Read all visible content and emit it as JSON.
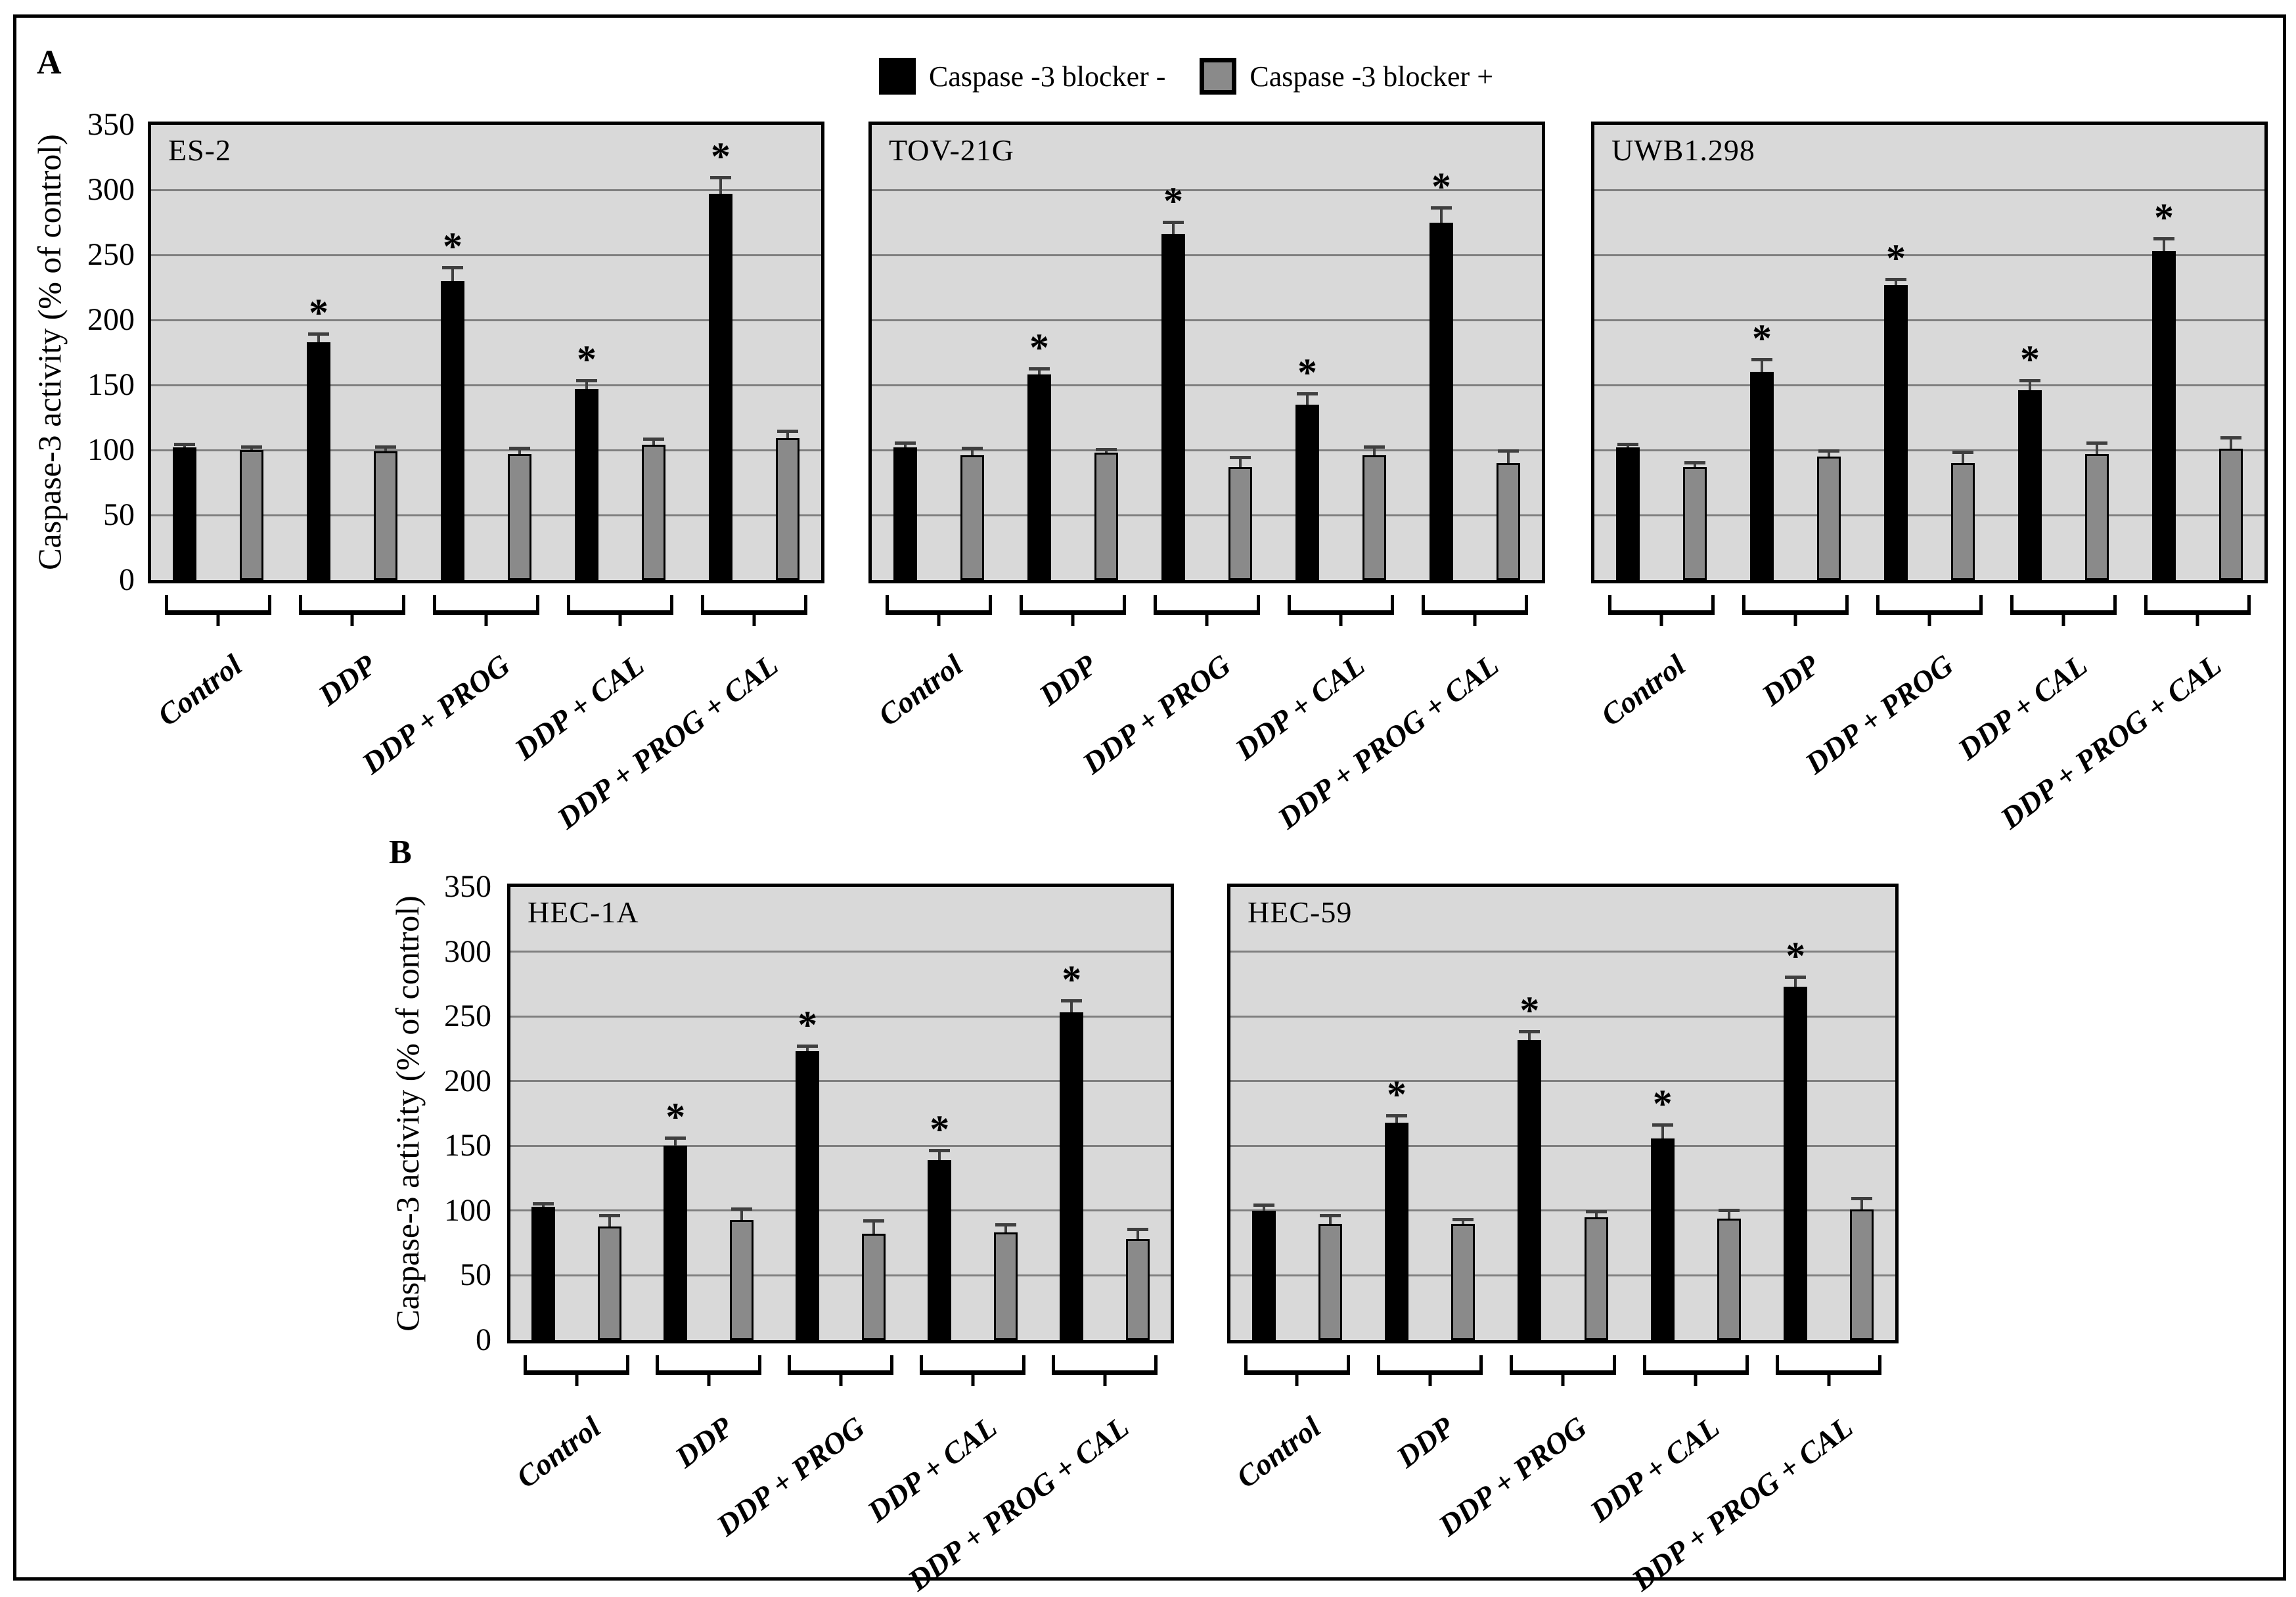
{
  "figure": {
    "panel_a_label": "A",
    "panel_b_label": "B",
    "legend": {
      "items": [
        {
          "label": "Caspase -3 blocker -",
          "color": "#000000"
        },
        {
          "label": "Caspase -3 blocker +",
          "color": "#8a8a8a"
        }
      ]
    },
    "y_axis": {
      "title": "Caspase-3 activity (% of control)",
      "ticks": [
        350,
        300,
        250,
        200,
        150,
        100,
        50,
        0
      ],
      "max": 350
    },
    "colors": {
      "black_bar": "#000000",
      "gray_bar": "#8a8a8a",
      "plot_bg": "#d9d9d9",
      "gridline": "#7f7f7f",
      "error_bar": "#3f3f3f",
      "border": "#000000"
    },
    "significance_marker": "*"
  },
  "chart_data": [
    {
      "type": "bar",
      "panel": "A",
      "title": "ES-2",
      "categories": [
        "Control",
        "DDP",
        "DDP + PROG",
        "DDP + CAL",
        "DDP + PROG + CAL"
      ],
      "ylim": [
        0,
        350
      ],
      "grid_step": 50,
      "series": [
        {
          "name": "Caspase -3 blocker -",
          "color": "#000000",
          "values": [
            102,
            183,
            230,
            147,
            297
          ],
          "errors": [
            2,
            6,
            10,
            6,
            12
          ],
          "significant": [
            false,
            true,
            true,
            true,
            true
          ]
        },
        {
          "name": "Caspase -3 blocker +",
          "color": "#8a8a8a",
          "values": [
            100,
            99,
            97,
            104,
            109
          ],
          "errors": [
            2,
            3,
            4,
            4,
            5
          ],
          "significant": [
            false,
            false,
            false,
            false,
            false
          ]
        }
      ]
    },
    {
      "type": "bar",
      "panel": "A",
      "title": "TOV-21G",
      "categories": [
        "Control",
        "DDP",
        "DDP + PROG",
        "DDP + CAL",
        "DDP + PROG + CAL"
      ],
      "ylim": [
        0,
        350
      ],
      "grid_step": 50,
      "series": [
        {
          "name": "Caspase -3 blocker -",
          "color": "#000000",
          "values": [
            102,
            158,
            266,
            135,
            275
          ],
          "errors": [
            3,
            4,
            9,
            8,
            11
          ],
          "significant": [
            false,
            true,
            true,
            true,
            true
          ]
        },
        {
          "name": "Caspase -3 blocker +",
          "color": "#8a8a8a",
          "values": [
            96,
            98,
            87,
            96,
            90
          ],
          "errors": [
            5,
            2,
            7,
            6,
            9
          ],
          "significant": [
            false,
            false,
            false,
            false,
            false
          ]
        }
      ]
    },
    {
      "type": "bar",
      "panel": "A",
      "title": "UWB1.298",
      "categories": [
        "Control",
        "DDP",
        "DDP + PROG",
        "DDP + CAL",
        "DDP + PROG + CAL"
      ],
      "ylim": [
        0,
        350
      ],
      "grid_step": 50,
      "series": [
        {
          "name": "Caspase -3 blocker -",
          "color": "#000000",
          "values": [
            102,
            160,
            227,
            146,
            253
          ],
          "errors": [
            2,
            9,
            4,
            7,
            9
          ],
          "significant": [
            false,
            true,
            true,
            true,
            true
          ]
        },
        {
          "name": "Caspase -3 blocker +",
          "color": "#8a8a8a",
          "values": [
            87,
            95,
            90,
            97,
            101
          ],
          "errors": [
            3,
            4,
            8,
            8,
            8
          ],
          "significant": [
            false,
            false,
            false,
            false,
            false
          ]
        }
      ]
    },
    {
      "type": "bar",
      "panel": "B",
      "title": "HEC-1A",
      "categories": [
        "Control",
        "DDP",
        "DDP + PROG",
        "DDP + CAL",
        "DDP + PROG + CAL"
      ],
      "ylim": [
        0,
        350
      ],
      "grid_step": 50,
      "series": [
        {
          "name": "Caspase -3 blocker -",
          "color": "#000000",
          "values": [
            103,
            150,
            223,
            139,
            253
          ],
          "errors": [
            2,
            6,
            4,
            7,
            9
          ],
          "significant": [
            false,
            true,
            true,
            true,
            true
          ]
        },
        {
          "name": "Caspase -3 blocker +",
          "color": "#8a8a8a",
          "values": [
            88,
            93,
            82,
            83,
            78
          ],
          "errors": [
            8,
            8,
            10,
            6,
            7
          ],
          "significant": [
            false,
            false,
            false,
            false,
            false
          ]
        }
      ]
    },
    {
      "type": "bar",
      "panel": "B",
      "title": "HEC-59",
      "categories": [
        "Control",
        "DDP",
        "DDP + PROG",
        "DDP + CAL",
        "DDP + PROG + CAL"
      ],
      "ylim": [
        0,
        350
      ],
      "grid_step": 50,
      "series": [
        {
          "name": "Caspase -3 blocker -",
          "color": "#000000",
          "values": [
            100,
            168,
            232,
            156,
            273
          ],
          "errors": [
            4,
            5,
            6,
            10,
            7
          ],
          "significant": [
            false,
            true,
            true,
            true,
            true
          ]
        },
        {
          "name": "Caspase -3 blocker +",
          "color": "#8a8a8a",
          "values": [
            90,
            90,
            95,
            94,
            101
          ],
          "errors": [
            6,
            3,
            4,
            6,
            8
          ],
          "significant": [
            false,
            false,
            false,
            false,
            false
          ]
        }
      ]
    }
  ]
}
